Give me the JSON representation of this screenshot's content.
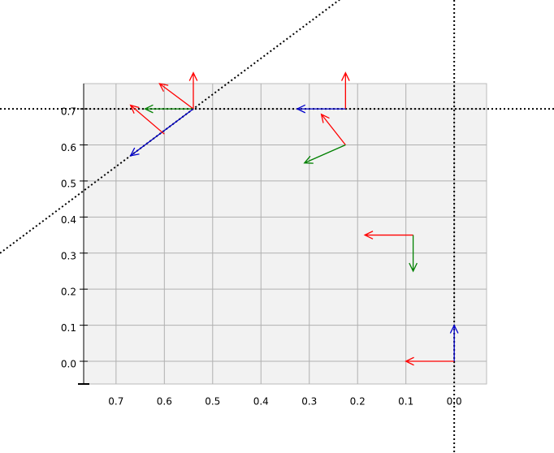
{
  "chart_data": {
    "type": "quiver",
    "xlim": [
      0.767,
      -0.067
    ],
    "ylim": [
      -0.063,
      0.77
    ],
    "xticks": [
      0.7,
      0.6,
      0.5,
      0.4,
      0.3,
      0.2,
      0.1,
      {
        "value": 0,
        "label": "0.0"
      }
    ],
    "yticks": [
      {
        "value": 0,
        "label": "0.0"
      },
      0.1,
      0.2,
      0.3,
      0.4,
      0.5,
      0.6,
      0.7
    ],
    "grid": true,
    "hlines": [
      0.7
    ],
    "vlines": [
      0
    ],
    "lines": [
      {
        "slope": -1,
        "intercept": 1.24
      }
    ],
    "arrows": [
      {
        "x": 0.54,
        "y": 0.7,
        "u": 0,
        "v": 0.1,
        "color": "#ff0000"
      },
      {
        "x": 0.54,
        "y": 0.7,
        "u": 0.07,
        "v": 0.07,
        "color": "#ff0000"
      },
      {
        "x": 0.54,
        "y": 0.7,
        "u": 0.1,
        "v": 0,
        "color": "#008000"
      },
      {
        "x": 0.54,
        "y": 0.7,
        "u": 0.13,
        "v": -0.13,
        "color": "#0000cc"
      },
      {
        "x": 0.6,
        "y": 0.63,
        "u": 0.07,
        "v": 0.08,
        "color": "#ff0000"
      },
      {
        "x": 0.225,
        "y": 0.7,
        "u": 0,
        "v": 0.1,
        "color": "#ff0000"
      },
      {
        "x": 0.225,
        "y": 0.7,
        "u": 0.1,
        "v": 0,
        "color": "#0000cc"
      },
      {
        "x": 0.225,
        "y": 0.6,
        "u": 0.05,
        "v": 0.085,
        "color": "#ff0000"
      },
      {
        "x": 0.225,
        "y": 0.6,
        "u": 0.085,
        "v": -0.05,
        "color": "#008000"
      },
      {
        "x": 0.085,
        "y": 0.35,
        "u": 0.1,
        "v": 0,
        "color": "#ff0000"
      },
      {
        "x": 0.085,
        "y": 0.35,
        "u": 0,
        "v": -0.1,
        "color": "#008000"
      },
      {
        "x": 0,
        "y": 0,
        "u": 0.1,
        "v": 0,
        "color": "#ff0000"
      },
      {
        "x": 0,
        "y": 0,
        "u": 0,
        "v": 0.1,
        "color": "#0000cc"
      }
    ]
  }
}
